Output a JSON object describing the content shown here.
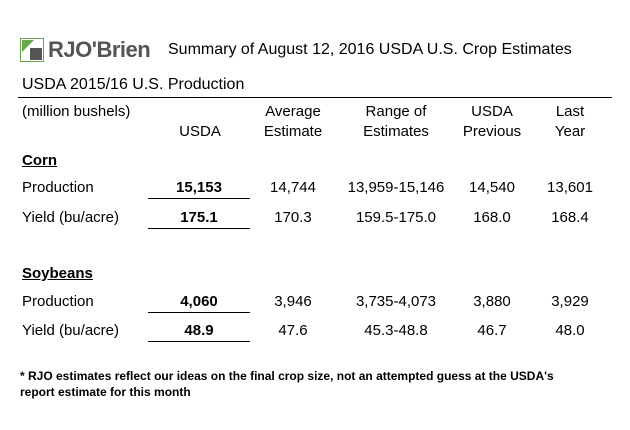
{
  "brand": {
    "name": "RJO'Brien",
    "accent": "#6aa84f"
  },
  "header": {
    "title": "Summary of August 12, 2016 USDA U.S. Crop Estimates"
  },
  "section_title": "USDA 2015/16 U.S. Production",
  "columns": {
    "units": "(million bushels)",
    "usda": "USDA",
    "average_estimate": [
      "Average",
      "Estimate"
    ],
    "range_of_estimates": [
      "Range of",
      "Estimates"
    ],
    "usda_previous": [
      "USDA",
      "Previous"
    ],
    "last_year": [
      "Last",
      "Year"
    ]
  },
  "groups": [
    {
      "name": "Corn",
      "rows": [
        {
          "label": "Production",
          "usda": "15,153",
          "average": "14,744",
          "range": "13,959-15,146",
          "previous": "14,540",
          "last_year": "13,601"
        },
        {
          "label": "Yield (bu/acre)",
          "usda": "175.1",
          "average": "170.3",
          "range": "159.5-175.0",
          "previous": "168.0",
          "last_year": "168.4"
        }
      ]
    },
    {
      "name": "Soybeans",
      "rows": [
        {
          "label": "Production",
          "usda": "4,060",
          "average": "3,946",
          "range": "3,735-4,073",
          "previous": "3,880",
          "last_year": "3,929"
        },
        {
          "label": "Yield (bu/acre)",
          "usda": "48.9",
          "average": "47.6",
          "range": "45.3-48.8",
          "previous": "46.7",
          "last_year": "48.0"
        }
      ]
    }
  ],
  "footnote": "* RJO estimates reflect our ideas on the final crop size, not an attempted guess at the USDA's report estimate for this month"
}
